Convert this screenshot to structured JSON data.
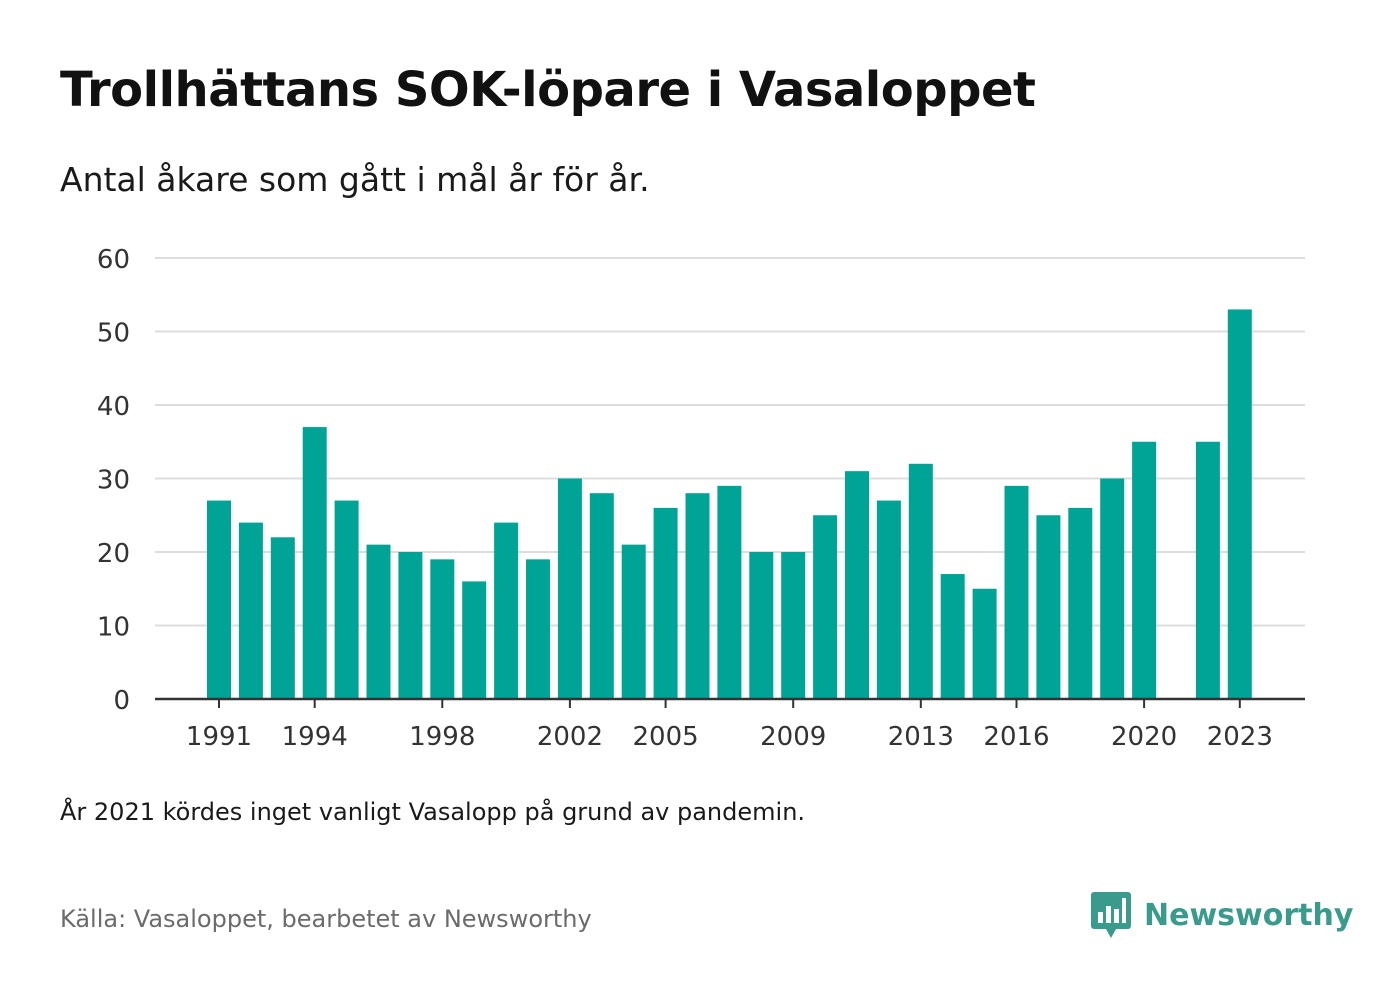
{
  "title": "Trollhättans SOK-löpare i Vasaloppet",
  "subtitle": "Antal åkare som gått i mål år för år.",
  "note": "År 2021 kördes inget vanligt Vasalopp på grund av pandemin.",
  "source": "Källa: Vasaloppet, bearbetet av Newsworthy",
  "logo": {
    "text": "Newsworthy",
    "icon": "newsworthy-logo-icon",
    "color": "#3a9a8c"
  },
  "chart_data": {
    "type": "bar",
    "title": "Trollhättans SOK-löpare i Vasaloppet",
    "xlabel": "",
    "ylabel": "",
    "categories": [
      "1991",
      "1992",
      "1993",
      "1994",
      "1995",
      "1996",
      "1997",
      "1998",
      "1999",
      "2000",
      "2001",
      "2002",
      "2003",
      "2004",
      "2005",
      "2006",
      "2007",
      "2008",
      "2009",
      "2010",
      "2011",
      "2012",
      "2013",
      "2014",
      "2015",
      "2016",
      "2017",
      "2018",
      "2019",
      "2020",
      "2021",
      "2022",
      "2023"
    ],
    "values": [
      27,
      24,
      22,
      37,
      27,
      21,
      20,
      19,
      16,
      24,
      19,
      30,
      28,
      21,
      26,
      28,
      29,
      20,
      20,
      25,
      31,
      27,
      32,
      17,
      15,
      29,
      25,
      26,
      30,
      35,
      null,
      35,
      53
    ],
    "x_tick_labels": [
      "1991",
      "1994",
      "1998",
      "2002",
      "2005",
      "2009",
      "2013",
      "2016",
      "2020",
      "2023"
    ],
    "y_ticks": [
      0,
      10,
      20,
      30,
      40,
      50,
      60
    ],
    "ylim": [
      0,
      60
    ],
    "grid": true,
    "legend": "none",
    "bar_color": "#00a497",
    "grid_color": "#dddddd",
    "axis_color": "#333333"
  }
}
